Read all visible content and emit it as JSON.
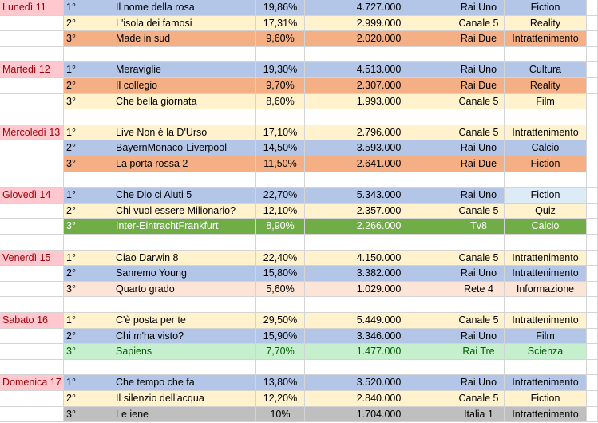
{
  "days": [
    {
      "label": "Lunedì 11",
      "rows": [
        {
          "rank": "1°",
          "title": "Il nome della rosa",
          "share": "19,86%",
          "audience": "4.727.000",
          "network": "Rai Uno",
          "genre": "Fiction",
          "color": "#b4c6e7"
        },
        {
          "rank": "2°",
          "title": "L'isola dei famosi",
          "share": "17,31%",
          "audience": "2.999.000",
          "network": "Canale 5",
          "genre": "Reality",
          "color": "#fff2cc"
        },
        {
          "rank": "3°",
          "title": "Made in sud",
          "share": "9,60%",
          "audience": "2.020.000",
          "network": "Rai Due",
          "genre": "Intrattenimento",
          "color": "#f4b084"
        }
      ]
    },
    {
      "label": "Martedì 12",
      "rows": [
        {
          "rank": "1°",
          "title": "Meraviglie",
          "share": "19,30%",
          "audience": "4.513.000",
          "network": "Rai Uno",
          "genre": "Cultura",
          "color": "#b4c6e7"
        },
        {
          "rank": "2°",
          "title": "Il collegio",
          "share": "9,70%",
          "audience": "2.307.000",
          "network": "Rai Due",
          "genre": "Reality",
          "color": "#f4b084"
        },
        {
          "rank": "3°",
          "title": "Che bella giornata",
          "share": "8,60%",
          "audience": "1.993.000",
          "network": "Canale 5",
          "genre": "Film",
          "color": "#fff2cc"
        }
      ]
    },
    {
      "label": "Mercoledì 13",
      "rows": [
        {
          "rank": "1°",
          "title": "Live Non è la D'Urso",
          "share": "17,10%",
          "audience": "2.796.000",
          "network": "Canale 5",
          "genre": "Intrattenimento",
          "color": "#fff2cc"
        },
        {
          "rank": "2°",
          "title": "BayernMonaco-Liverpool",
          "share": "14,50%",
          "audience": "3.593.000",
          "network": "Rai Uno",
          "genre": "Calcio",
          "color": "#b4c6e7"
        },
        {
          "rank": "3°",
          "title": "La porta rossa 2",
          "share": "11,50%",
          "audience": "2.641.000",
          "network": "Rai Due",
          "genre": "Fiction",
          "color": "#f4b084"
        }
      ]
    },
    {
      "label": "Giovedì 14",
      "rows": [
        {
          "rank": "1°",
          "title": "Che Dio ci Aiuti 5",
          "share": "22,70%",
          "audience": "5.343.000",
          "network": "Rai Uno",
          "genre": "Fiction",
          "color": "#b4c6e7",
          "genre_color": "#ddebf7"
        },
        {
          "rank": "2°",
          "title": "Chi vuol essere Milionario?",
          "share": "12,10%",
          "audience": "2.357.000",
          "network": "Canale 5",
          "genre": "Quiz",
          "color": "#fff2cc"
        },
        {
          "rank": "3°",
          "title": "Inter-EintrachtFrankfurt",
          "share": "8,90%",
          "audience": "2.266.000",
          "network": "Tv8",
          "genre": "Calcio",
          "color": "#70ad47",
          "text_color": "#ffffff"
        }
      ]
    },
    {
      "label": "Venerdì 15",
      "rows": [
        {
          "rank": "1°",
          "title": "Ciao Darwin 8",
          "share": "22,40%",
          "audience": "4.150.000",
          "network": "Canale 5",
          "genre": "Intrattenimento",
          "color": "#fff2cc"
        },
        {
          "rank": "2°",
          "title": "Sanremo Young",
          "share": "15,80%",
          "audience": "3.382.000",
          "network": "Rai Uno",
          "genre": "Intrattenimento",
          "color": "#b4c6e7"
        },
        {
          "rank": "3°",
          "title": "Quarto grado",
          "share": "5,60%",
          "audience": "1.029.000",
          "network": "Rete 4",
          "genre": "Informazione",
          "color": "#fce4d6"
        }
      ]
    },
    {
      "label": "Sabato 16",
      "rows": [
        {
          "rank": "1°",
          "title": "C'è posta per te",
          "share": "29,50%",
          "audience": "5.449.000",
          "network": "Canale 5",
          "genre": "Intrattenimento",
          "color": "#fff2cc"
        },
        {
          "rank": "2°",
          "title": "Chi m'ha visto?",
          "share": "15,90%",
          "audience": "3.346.000",
          "network": "Rai Uno",
          "genre": "Film",
          "color": "#b4c6e7"
        },
        {
          "rank": "3°",
          "title": "Sapiens",
          "share": "7,70%",
          "audience": "1.477.000",
          "network": "Rai Tre",
          "genre": "Scienza",
          "color": "#c6efce",
          "text_color": "#006100"
        }
      ]
    },
    {
      "label": "Domenica 17",
      "rows": [
        {
          "rank": "1°",
          "title": "Che tempo che fa",
          "share": "13,80%",
          "audience": "3.520.000",
          "network": "Rai Uno",
          "genre": "Intrattenimento",
          "color": "#b4c6e7"
        },
        {
          "rank": "2°",
          "title": "Il silenzio dell'acqua",
          "share": "12,20%",
          "audience": "2.840.000",
          "network": "Canale 5",
          "genre": "Fiction",
          "color": "#fff2cc"
        },
        {
          "rank": "3°",
          "title": "Le iene",
          "share": "10%",
          "audience": "1.704.000",
          "network": "Italia 1",
          "genre": "Intrattenimento",
          "color": "#bfbfbf"
        }
      ]
    }
  ]
}
